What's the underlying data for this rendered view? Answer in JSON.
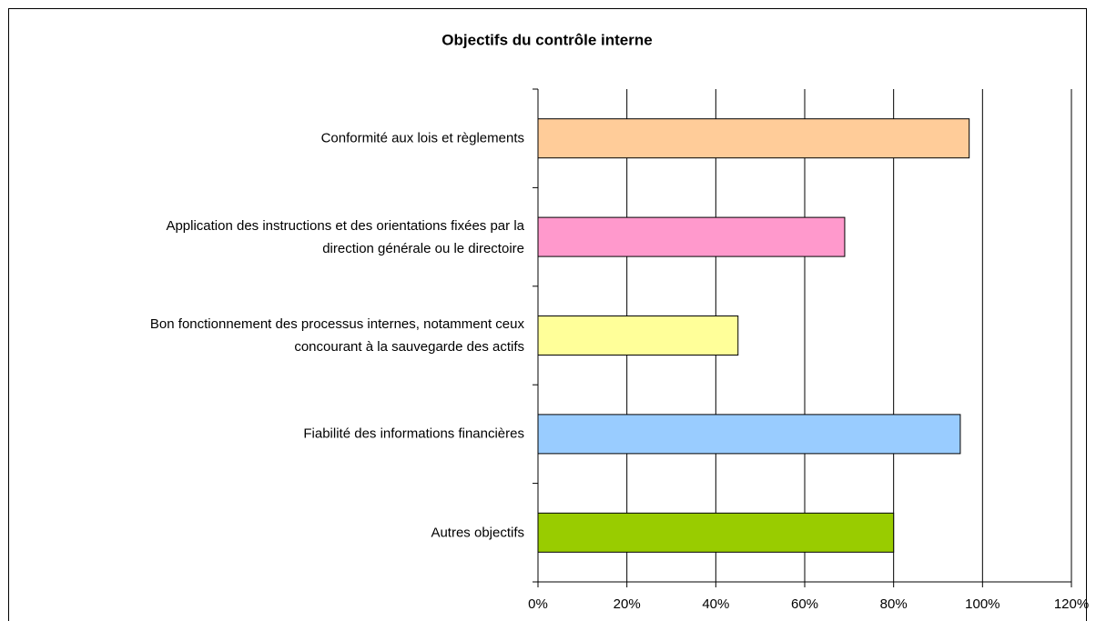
{
  "chart_data": {
    "type": "bar",
    "orientation": "horizontal",
    "title": "Objectifs du contrôle interne",
    "categories": [
      "Conformité aux lois et règlements",
      "Application des instructions et des orientations fixées par la\ndirection générale ou le directoire",
      "Bon fonctionnement des processus internes, notamment ceux\nconcourant à la sauvegarde des actifs",
      "Fiabilité des informations financières",
      "Autres objectifs"
    ],
    "values": [
      97,
      69,
      45,
      95,
      80
    ],
    "colors": [
      "#ffcc99",
      "#ff99cc",
      "#ffff99",
      "#99ccff",
      "#99cc00"
    ],
    "xlim": [
      0,
      120
    ],
    "xticks": [
      {
        "value": 0,
        "label": "0%"
      },
      {
        "value": 20,
        "label": "20%"
      },
      {
        "value": 40,
        "label": "40%"
      },
      {
        "value": 60,
        "label": "60%"
      },
      {
        "value": 80,
        "label": "80%"
      },
      {
        "value": 100,
        "label": "100%"
      },
      {
        "value": 120,
        "label": "120%"
      }
    ],
    "grid": true
  }
}
